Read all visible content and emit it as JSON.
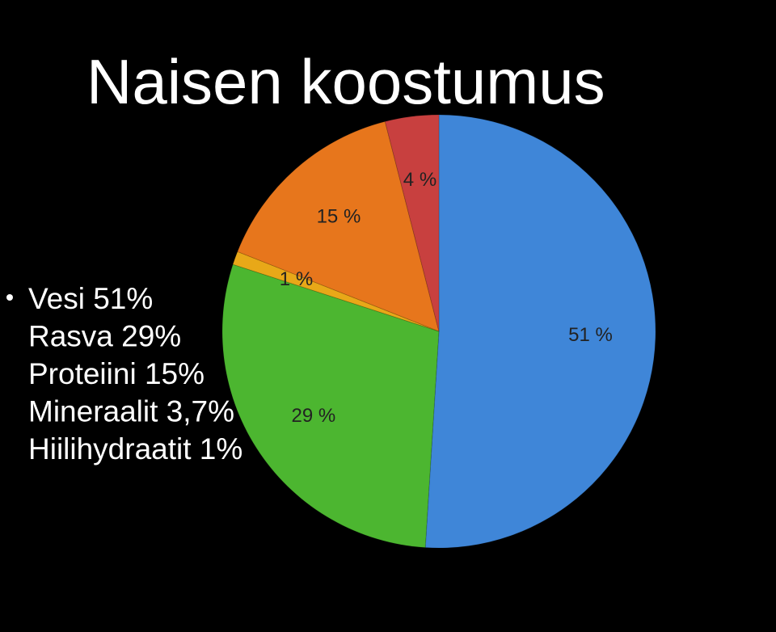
{
  "chart_data": {
    "type": "pie",
    "title": "Naisen koostumus",
    "values": [
      51,
      29,
      1,
      15,
      4
    ],
    "value_labels": [
      "51 %",
      "29 %",
      "1 %",
      "15 %",
      "4 %"
    ],
    "colors": [
      "#3f86d8",
      "#4cb630",
      "#e8a818",
      "#e7761c",
      "#c8403f"
    ]
  },
  "bullet": {
    "lines": [
      "Vesi 51%",
      "Rasva 29%",
      "Proteiini 15%",
      "Mineraalit 3,7%",
      "Hiilihydraatit 1%"
    ]
  }
}
